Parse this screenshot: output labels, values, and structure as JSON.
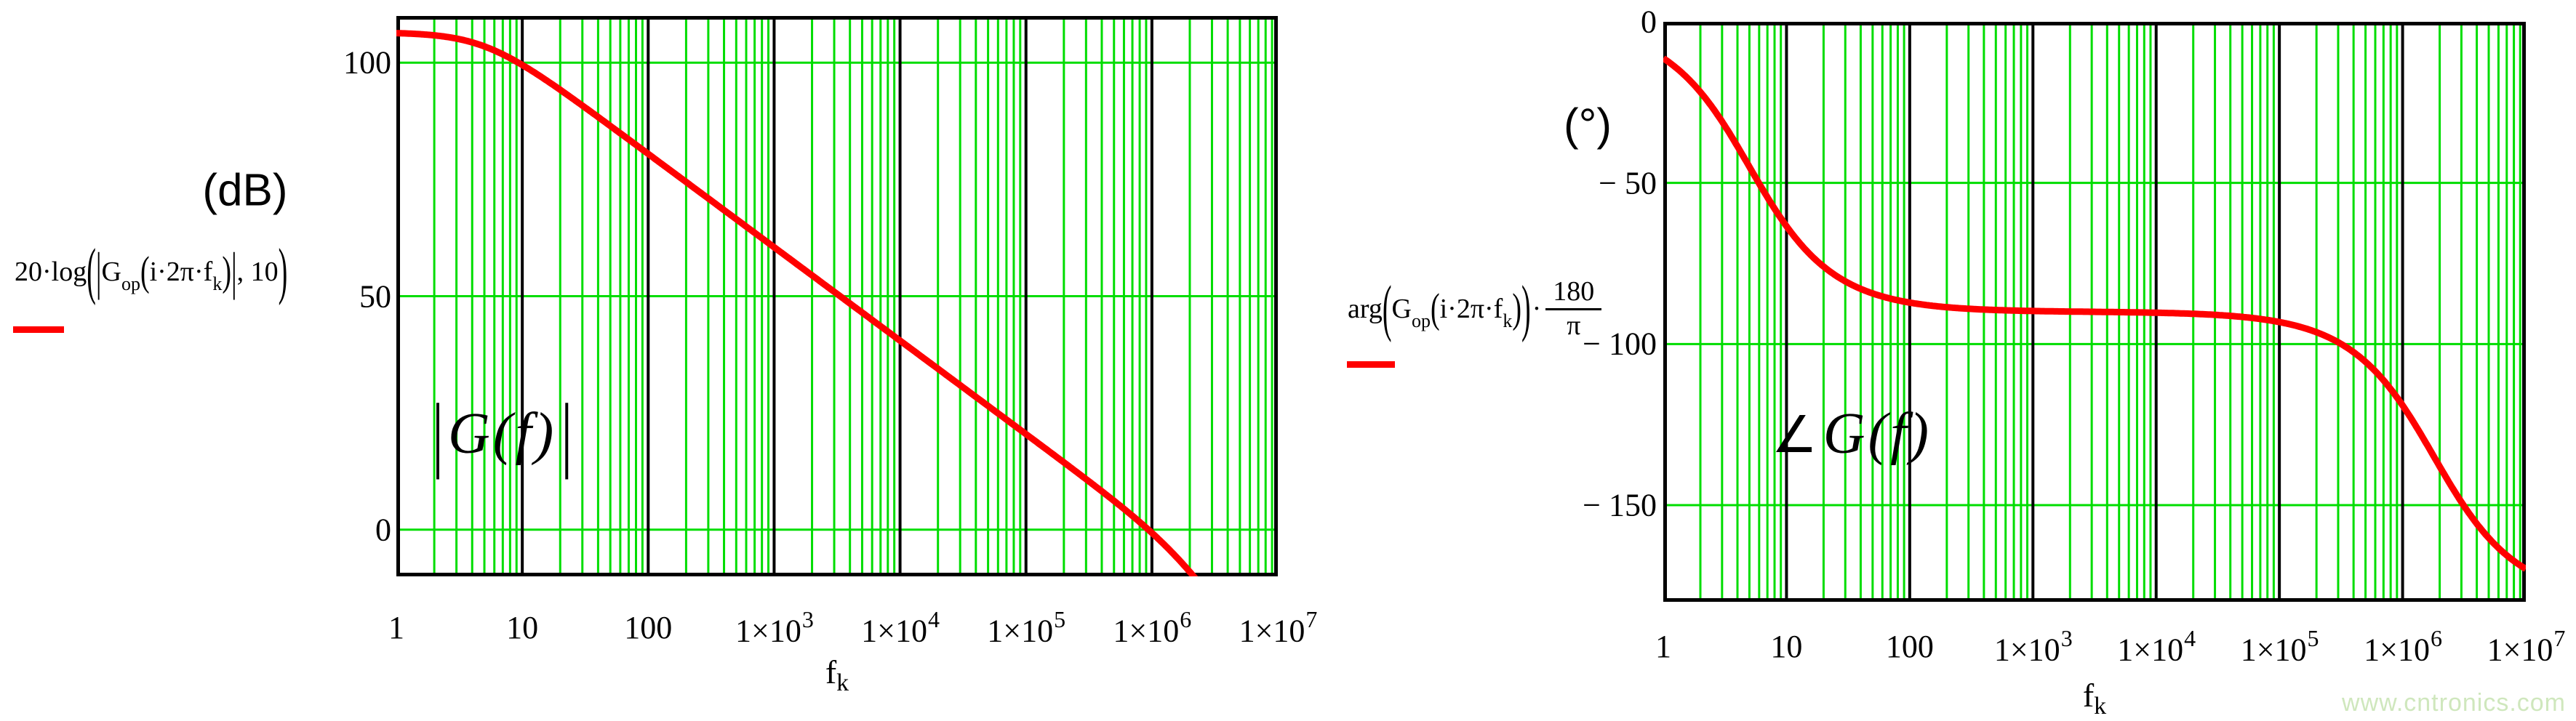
{
  "watermark": "www.cntronics.com",
  "chart_data": [
    {
      "type": "line",
      "x_scale": "log",
      "title": "",
      "unit_label": "(dB)",
      "legend_text": "20·log(|G_op(i·2π·f_k)|, 10)",
      "legend_parts": {
        "func": "20·log",
        "outer_open": "(",
        "bar": "|",
        "g": "G",
        "g_sub": "op",
        "inner_open": "(",
        "inner": "i·2π·f",
        "inner_sub": "k",
        "inner_close": ")",
        "rest": ", 10",
        "outer_close": ")"
      },
      "annotation_text": "|G(f)|",
      "annotation_parts": {
        "pre": "|",
        "body": "G(f)",
        "post": "|"
      },
      "xlabel_text": "f_k",
      "xlabel_parts": {
        "base": "f",
        "sub": "k"
      },
      "x_log_range": [
        0,
        7
      ],
      "x_ticks": [
        {
          "label": "1",
          "log": 0
        },
        {
          "label": "10",
          "log": 1
        },
        {
          "label": "100",
          "log": 2
        },
        {
          "label": "1×10",
          "exp": "3",
          "log": 3
        },
        {
          "label": "1×10",
          "exp": "4",
          "log": 4
        },
        {
          "label": "1×10",
          "exp": "5",
          "log": 5
        },
        {
          "label": "1×10",
          "exp": "6",
          "log": 6
        },
        {
          "label": "1×10",
          "exp": "7",
          "log": 7
        }
      ],
      "ylim": [
        -10,
        110
      ],
      "y_ticks": [
        {
          "label": "100",
          "value": 100
        },
        {
          "label": "50",
          "value": 50
        },
        {
          "label": "0",
          "value": 0
        }
      ],
      "grid": true,
      "grid_color": "#00DD00",
      "series_color": "#FF0000",
      "model": {
        "formula": "mag_db",
        "dc_gain_db": 106.5,
        "pole1_hz": 5,
        "pole2_hz": 1800000
      },
      "samples": {
        "f": [
          1,
          1.78,
          3.16,
          5.62,
          10,
          17.8,
          31.6,
          56.2,
          100,
          178,
          316,
          562,
          1000,
          1780,
          3160,
          5620,
          10000,
          17800,
          31600,
          56200,
          100000,
          178000,
          316000,
          562000,
          1000000,
          1780000,
          3160000,
          5620000,
          10000000
        ],
        "value": [
          106.3,
          106.0,
          105.0,
          103.0,
          99.5,
          95.2,
          90.4,
          85.4,
          80.5,
          75.5,
          70.5,
          65.5,
          60.5,
          55.5,
          50.5,
          45.5,
          40.5,
          35.5,
          30.5,
          25.5,
          20.5,
          15.4,
          10.3,
          5.1,
          -0.7,
          -7.5,
          -15.6,
          -25.0,
          -34.8
        ]
      },
      "clip_to_ylim": true
    },
    {
      "type": "line",
      "x_scale": "log",
      "title": "",
      "unit_label": "(°)",
      "legend_text": "arg(G_op(i·2π·f_k))·180/π",
      "legend_parts": {
        "func": "arg",
        "outer_open": "(",
        "g": "G",
        "g_sub": "op",
        "inner_open": "(",
        "inner": "i·2π·f",
        "inner_sub": "k",
        "inner_close": ")",
        "outer_close": ")",
        "dot": "·",
        "frac_num": "180",
        "frac_den": "π"
      },
      "annotation_text": "∠G(f)",
      "annotation_parts": {
        "pre": "∠",
        "body": "G(f)",
        "post": ""
      },
      "xlabel_text": "f_k",
      "xlabel_parts": {
        "base": "f",
        "sub": "k"
      },
      "x_log_range": [
        0,
        7
      ],
      "x_ticks": [
        {
          "label": "1",
          "log": 0
        },
        {
          "label": "10",
          "log": 1
        },
        {
          "label": "100",
          "log": 2
        },
        {
          "label": "1×10",
          "exp": "3",
          "log": 3
        },
        {
          "label": "1×10",
          "exp": "4",
          "log": 4
        },
        {
          "label": "1×10",
          "exp": "5",
          "log": 5
        },
        {
          "label": "1×10",
          "exp": "6",
          "log": 6
        },
        {
          "label": "1×10",
          "exp": "7",
          "log": 7
        }
      ],
      "ylim": [
        -180,
        0
      ],
      "y_ticks": [
        {
          "label": "0",
          "value": 0
        },
        {
          "label": "− 50",
          "value": -50
        },
        {
          "label": "− 100",
          "value": -100
        },
        {
          "label": "− 150",
          "value": -150
        }
      ],
      "grid": true,
      "grid_color": "#00DD00",
      "series_color": "#FF0000",
      "model": {
        "formula": "phase_deg",
        "dc_gain_db": 106.5,
        "pole1_hz": 5,
        "pole2_hz": 1800000
      },
      "samples": {
        "f": [
          1,
          1.78,
          3.16,
          5.62,
          10,
          17.8,
          31.6,
          56.2,
          100,
          178,
          316,
          562,
          1000,
          1780,
          3160,
          5620,
          10000,
          17800,
          31600,
          56200,
          100000,
          178000,
          316000,
          562000,
          1000000,
          1780000,
          3160000,
          5620000,
          10000000
        ],
        "value": [
          -11.3,
          -19.6,
          -32.3,
          -48.4,
          -63.4,
          -74.3,
          -81.0,
          -84.9,
          -87.1,
          -88.4,
          -89.1,
          -89.5,
          -89.7,
          -89.9,
          -90.0,
          -90.1,
          -90.3,
          -90.6,
          -91.0,
          -91.8,
          -93.2,
          -95.6,
          -100.0,
          -107.3,
          -119.0,
          -134.6,
          -150.3,
          -162.3,
          -169.8
        ]
      },
      "clip_to_ylim": true
    }
  ]
}
